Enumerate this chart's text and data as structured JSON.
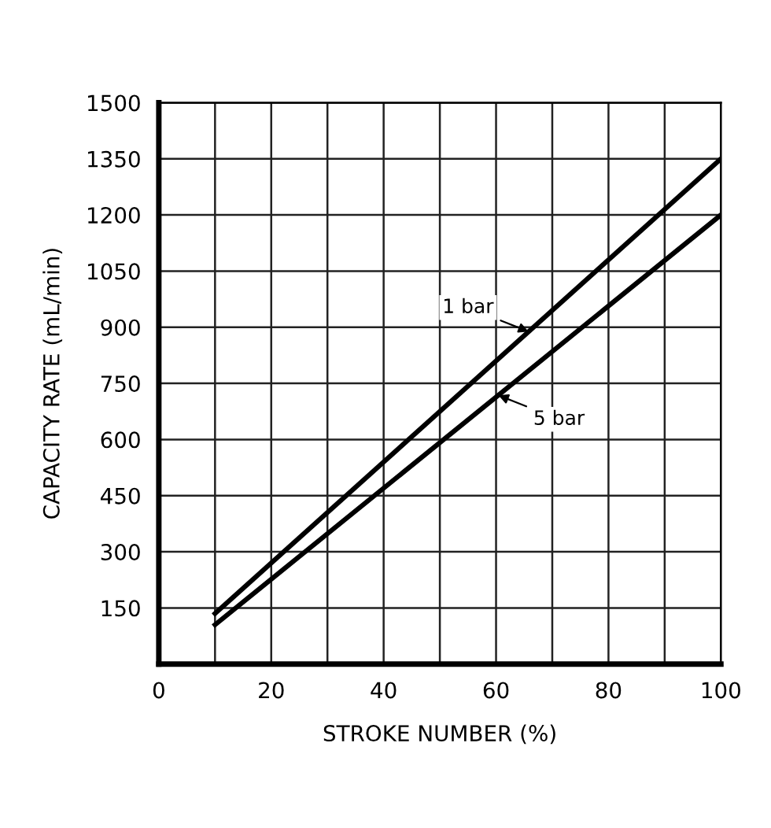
{
  "chart_data": {
    "type": "line",
    "xlabel": "STROKE NUMBER (%)",
    "ylabel": "CAPACITY RATE (mL/min)",
    "x": [
      10,
      100
    ],
    "series": [
      {
        "name": "1 bar",
        "color": "#000000",
        "values": [
          135,
          1350
        ]
      },
      {
        "name": "5 bar",
        "color": "#000000",
        "values": [
          105,
          1200
        ]
      }
    ],
    "xlim": [
      0,
      100
    ],
    "ylim": [
      0,
      1500
    ],
    "xticks": [
      0,
      {
        "value": 10,
        "label": null
      },
      20,
      {
        "value": 30,
        "label": null
      },
      40,
      {
        "value": 50,
        "label": null
      },
      60,
      {
        "value": 70,
        "label": null
      },
      80,
      {
        "value": 90,
        "label": null
      },
      100
    ],
    "yticks": [
      {
        "value": 0,
        "label": null
      },
      150,
      300,
      450,
      600,
      750,
      900,
      1050,
      1200,
      1350,
      1500
    ],
    "grid": true,
    "legend": false,
    "marker": "none",
    "line_style": "solid"
  }
}
